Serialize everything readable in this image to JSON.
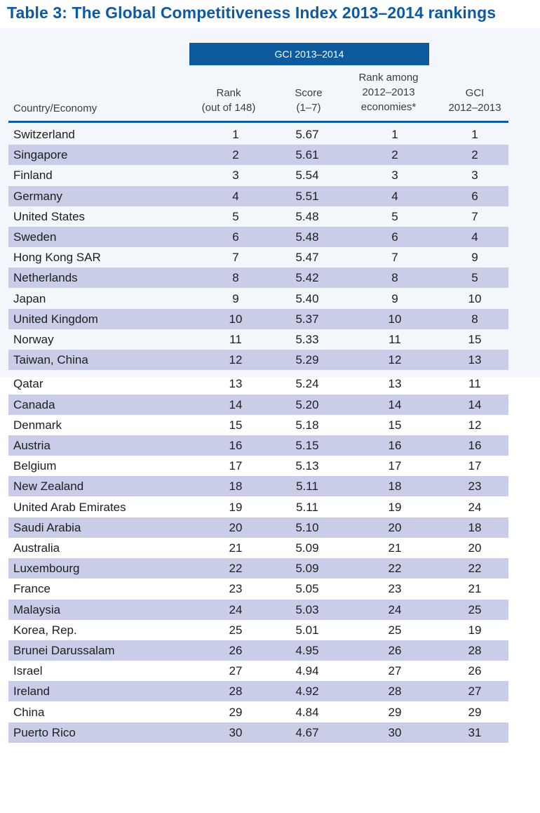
{
  "title": "Table 3: The Global Competitiveness Index 2013–2014 rankings",
  "group_header": "GCI 2013–2014",
  "columns": {
    "country": "Country/Economy",
    "rank": [
      "Rank",
      "(out of 148)"
    ],
    "score": [
      "Score",
      "(1–7)"
    ],
    "rank_among": [
      "Rank among",
      "2012–2013",
      "economies*"
    ],
    "gci_prev": [
      "GCI",
      "2012–2013"
    ]
  },
  "rows": [
    [
      "Switzerland",
      "1",
      "5.67",
      "1",
      "1"
    ],
    [
      "Singapore",
      "2",
      "5.61",
      "2",
      "2"
    ],
    [
      "Finland",
      "3",
      "5.54",
      "3",
      "3"
    ],
    [
      "Germany",
      "4",
      "5.51",
      "4",
      "6"
    ],
    [
      "United States",
      "5",
      "5.48",
      "5",
      "7"
    ],
    [
      "Sweden",
      "6",
      "5.48",
      "6",
      "4"
    ],
    [
      "Hong Kong SAR",
      "7",
      "5.47",
      "7",
      "9"
    ],
    [
      "Netherlands",
      "8",
      "5.42",
      "8",
      "5"
    ],
    [
      "Japan",
      "9",
      "5.40",
      "9",
      "10"
    ],
    [
      "United Kingdom",
      "10",
      "5.37",
      "10",
      "8"
    ],
    [
      "Norway",
      "11",
      "5.33",
      "11",
      "15"
    ],
    [
      "Taiwan, China",
      "12",
      "5.29",
      "12",
      "13"
    ],
    [
      "Qatar",
      "13",
      "5.24",
      "13",
      "11"
    ],
    [
      "Canada",
      "14",
      "5.20",
      "14",
      "14"
    ],
    [
      "Denmark",
      "15",
      "5.18",
      "15",
      "12"
    ],
    [
      "Austria",
      "16",
      "5.15",
      "16",
      "16"
    ],
    [
      "Belgium",
      "17",
      "5.13",
      "17",
      "17"
    ],
    [
      "New Zealand",
      "18",
      "5.11",
      "18",
      "23"
    ],
    [
      "United Arab Emirates",
      "19",
      "5.11",
      "19",
      "24"
    ],
    [
      "Saudi Arabia",
      "20",
      "5.10",
      "20",
      "18"
    ],
    [
      "Australia",
      "21",
      "5.09",
      "21",
      "20"
    ],
    [
      "Luxembourg",
      "22",
      "5.09",
      "22",
      "22"
    ],
    [
      "France",
      "23",
      "5.05",
      "23",
      "21"
    ],
    [
      "Malaysia",
      "24",
      "5.03",
      "24",
      "25"
    ],
    [
      "Korea, Rep.",
      "25",
      "5.01",
      "25",
      "19"
    ],
    [
      "Brunei Darussalam",
      "26",
      "4.95",
      "26",
      "28"
    ],
    [
      "Israel",
      "27",
      "4.94",
      "27",
      "26"
    ],
    [
      "Ireland",
      "28",
      "4.92",
      "28",
      "27"
    ],
    [
      "China",
      "29",
      "4.84",
      "29",
      "29"
    ],
    [
      "Puerto Rico",
      "30",
      "4.67",
      "30",
      "31"
    ]
  ]
}
